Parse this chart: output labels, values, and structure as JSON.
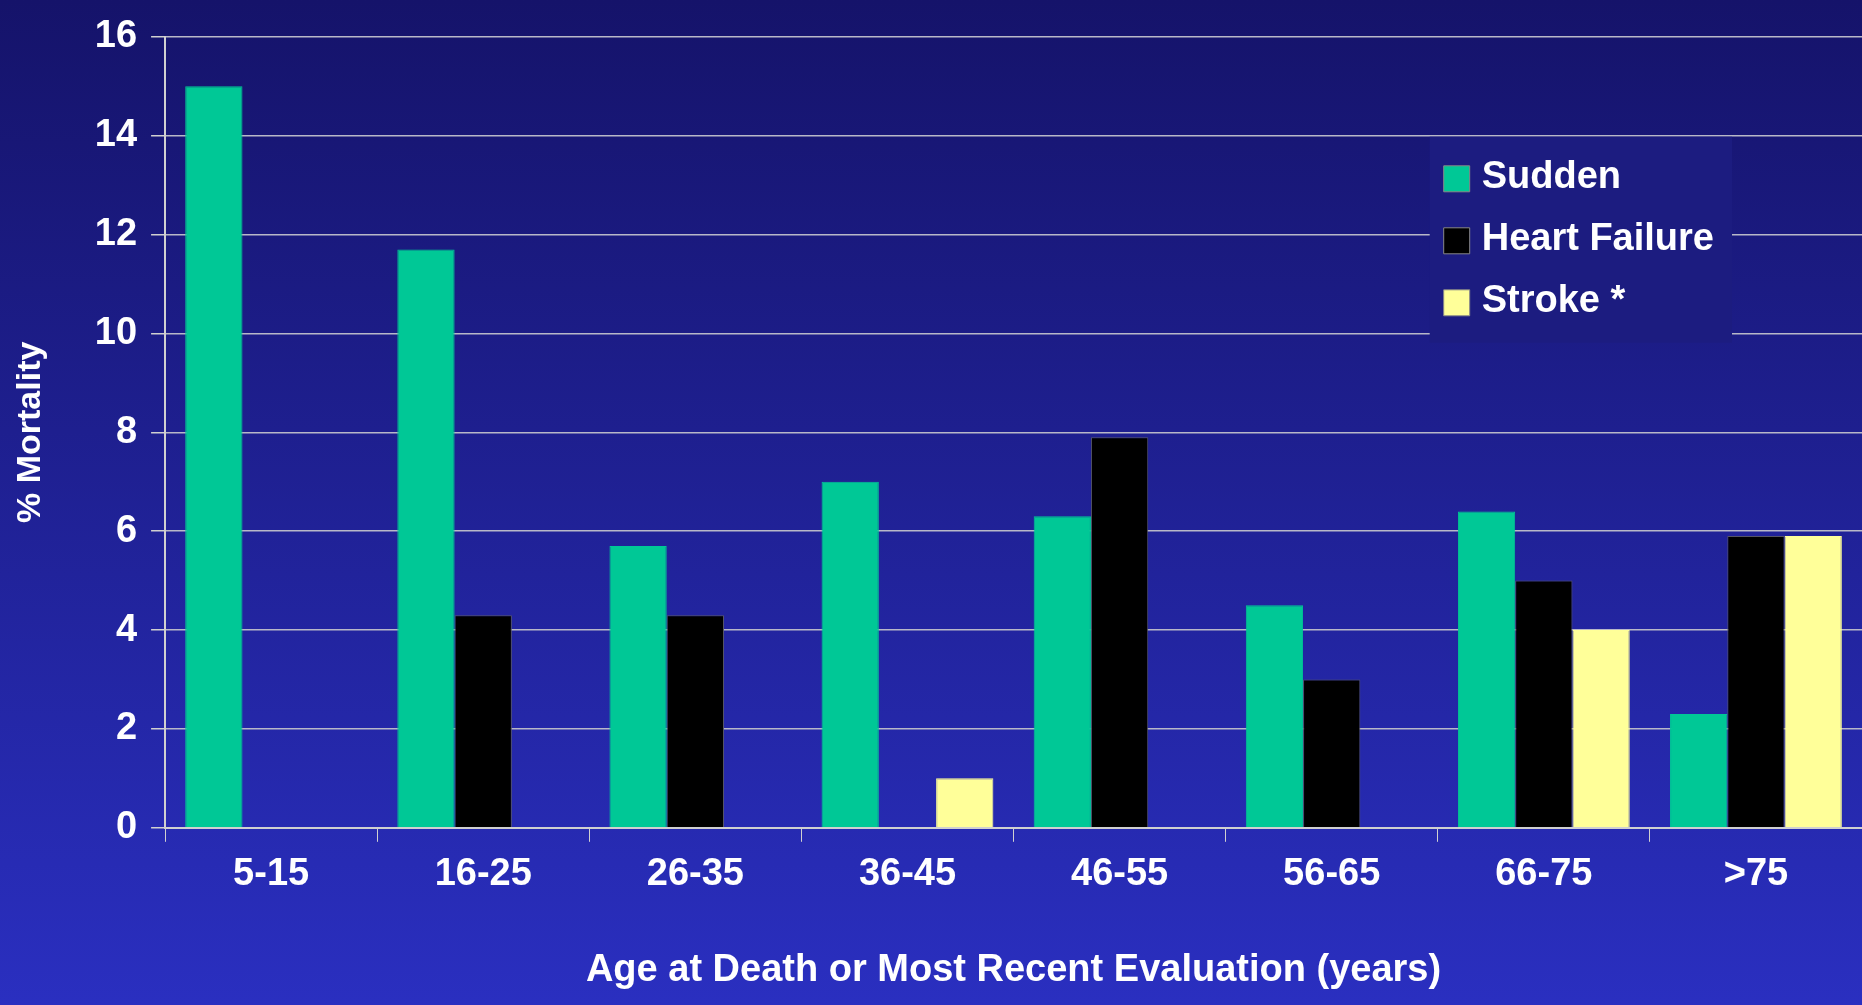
{
  "chart_data": {
    "type": "bar",
    "xlabel": "Age at Death or Most Recent Evaluation (years)",
    "ylabel": "% Mortality",
    "categories": [
      "5-15",
      "16-25",
      "26-35",
      "36-45",
      "46-55",
      "56-65",
      "66-75",
      ">75"
    ],
    "series": [
      {
        "name": "Sudden",
        "color": "#00c896",
        "values": [
          15.0,
          11.7,
          5.7,
          7.0,
          6.3,
          4.5,
          6.4,
          2.3
        ]
      },
      {
        "name": "Heart Failure",
        "color": "#000000",
        "values": [
          0,
          4.3,
          4.3,
          0,
          7.9,
          3.0,
          5.0,
          5.9
        ]
      },
      {
        "name": "Stroke *",
        "color": "#ffff99",
        "values": [
          0,
          0,
          0,
          1.0,
          0,
          0,
          4.0,
          5.9
        ]
      }
    ],
    "ylim": [
      0,
      16
    ],
    "yticks": [
      0,
      2,
      4,
      6,
      8,
      10,
      12,
      14,
      16
    ],
    "grid": "y",
    "legend": "top right"
  }
}
